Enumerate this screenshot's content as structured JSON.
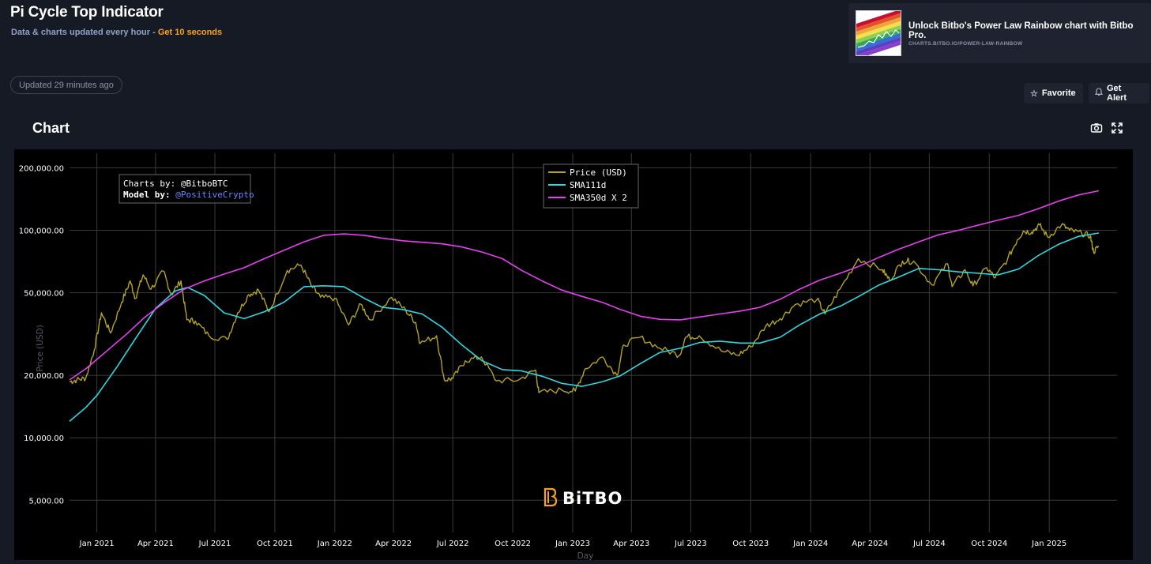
{
  "header": {
    "title": "Pi Cycle Top Indicator",
    "subtitle": "Data & charts updated every hour - ",
    "subtitle_accent": "Get 10 seconds",
    "updated": "Updated 29 minutes ago"
  },
  "promo": {
    "title": "Unlock Bitbo's Power Law Rainbow chart with Bitbo Pro.",
    "url": "CHARTS.BITBO.IO/POWER-LAW-RAINBOW"
  },
  "actions": {
    "favorite": "Favorite",
    "favorite_icon": "star-icon",
    "alert": "Get Alert",
    "alert_icon": "bell-icon"
  },
  "section": {
    "title": "Chart"
  },
  "toolbar": {
    "camera_icon": "camera-icon",
    "expand_icon": "expand-icon"
  },
  "watermark": "BiTBO",
  "annotation": {
    "line1": "Charts by: @BitboBTC",
    "line2_label": "Model by: ",
    "line2_link": "@PositiveCrypto"
  },
  "chart_data": {
    "type": "line",
    "xlabel": "Day",
    "ylabel": "Price (USD)",
    "y_scale": "log",
    "ylim": [
      3500,
      235000
    ],
    "xlim": [
      "2020-11-20",
      "2025-04-15"
    ],
    "grid": true,
    "legend_position": "top-center",
    "y_ticks": [
      5000,
      10000,
      20000,
      50000,
      100000,
      200000
    ],
    "y_tick_labels": [
      "5,000.00",
      "10,000.00",
      "20,000.00",
      "50,000.00",
      "100,000.00",
      "200,000.00"
    ],
    "x_ticks": [
      "2021-01-01",
      "2021-04-01",
      "2021-07-01",
      "2021-10-01",
      "2022-01-01",
      "2022-04-01",
      "2022-07-01",
      "2022-10-01",
      "2023-01-01",
      "2023-04-01",
      "2023-07-01",
      "2023-10-01",
      "2024-01-01",
      "2024-04-01",
      "2024-07-01",
      "2024-10-01",
      "2025-01-01"
    ],
    "x_tick_labels": [
      "Jan 2021",
      "Apr 2021",
      "Jul 2021",
      "Oct 2021",
      "Jan 2022",
      "Apr 2022",
      "Jul 2022",
      "Oct 2022",
      "Jan 2023",
      "Apr 2023",
      "Jul 2023",
      "Oct 2023",
      "Jan 2024",
      "Apr 2024",
      "Jul 2024",
      "Oct 2024",
      "Jan 2025"
    ],
    "series": [
      {
        "name": "Price (USD)",
        "color": "#b5a420",
        "points": [
          [
            "2020-11-20",
            18600
          ],
          [
            "2020-12-01",
            19000
          ],
          [
            "2020-12-15",
            19400
          ],
          [
            "2020-12-28",
            26500
          ],
          [
            "2021-01-08",
            40000
          ],
          [
            "2021-01-22",
            32000
          ],
          [
            "2021-02-08",
            45000
          ],
          [
            "2021-02-21",
            57000
          ],
          [
            "2021-03-01",
            47000
          ],
          [
            "2021-03-13",
            61000
          ],
          [
            "2021-03-25",
            52000
          ],
          [
            "2021-04-13",
            63500
          ],
          [
            "2021-04-25",
            49000
          ],
          [
            "2021-05-10",
            57000
          ],
          [
            "2021-05-19",
            37000
          ],
          [
            "2021-06-01",
            36500
          ],
          [
            "2021-06-22",
            31000
          ],
          [
            "2021-07-20",
            29800
          ],
          [
            "2021-08-05",
            40000
          ],
          [
            "2021-08-22",
            49000
          ],
          [
            "2021-09-06",
            51500
          ],
          [
            "2021-09-22",
            40500
          ],
          [
            "2021-10-20",
            64000
          ],
          [
            "2021-11-10",
            68000
          ],
          [
            "2021-11-26",
            54000
          ],
          [
            "2021-12-10",
            47500
          ],
          [
            "2022-01-01",
            47000
          ],
          [
            "2022-01-22",
            35000
          ],
          [
            "2022-02-10",
            44000
          ],
          [
            "2022-02-24",
            37000
          ],
          [
            "2022-03-29",
            47500
          ],
          [
            "2022-04-20",
            41000
          ],
          [
            "2022-05-05",
            36000
          ],
          [
            "2022-05-12",
            28500
          ],
          [
            "2022-06-06",
            31000
          ],
          [
            "2022-06-18",
            19000
          ],
          [
            "2022-07-01",
            19300
          ],
          [
            "2022-07-20",
            23500
          ],
          [
            "2022-08-14",
            24500
          ],
          [
            "2022-09-06",
            18800
          ],
          [
            "2022-10-10",
            19000
          ],
          [
            "2022-11-05",
            21200
          ],
          [
            "2022-11-10",
            16500
          ],
          [
            "2022-12-15",
            17000
          ],
          [
            "2023-01-05",
            16800
          ],
          [
            "2023-01-20",
            21500
          ],
          [
            "2023-02-16",
            24500
          ],
          [
            "2023-03-10",
            20000
          ],
          [
            "2023-03-20",
            28000
          ],
          [
            "2023-04-14",
            30500
          ],
          [
            "2023-05-15",
            27000
          ],
          [
            "2023-06-14",
            25000
          ],
          [
            "2023-06-23",
            30500
          ],
          [
            "2023-07-14",
            31000
          ],
          [
            "2023-08-17",
            26200
          ],
          [
            "2023-09-11",
            25000
          ],
          [
            "2023-10-01",
            27500
          ],
          [
            "2023-10-24",
            34500
          ],
          [
            "2023-11-15",
            37500
          ],
          [
            "2023-12-08",
            43800
          ],
          [
            "2024-01-11",
            46500
          ],
          [
            "2024-01-23",
            39500
          ],
          [
            "2024-02-15",
            52000
          ],
          [
            "2024-03-14",
            73000
          ],
          [
            "2024-04-20",
            64500
          ],
          [
            "2024-05-01",
            57500
          ],
          [
            "2024-05-21",
            71000
          ],
          [
            "2024-06-07",
            71000
          ],
          [
            "2024-07-05",
            54500
          ],
          [
            "2024-07-29",
            69000
          ],
          [
            "2024-08-05",
            53500
          ],
          [
            "2024-08-25",
            64500
          ],
          [
            "2024-09-06",
            53900
          ],
          [
            "2024-09-27",
            66000
          ],
          [
            "2024-10-10",
            59000
          ],
          [
            "2024-10-29",
            72500
          ],
          [
            "2024-11-13",
            90000
          ],
          [
            "2024-11-22",
            99000
          ],
          [
            "2024-12-05",
            98000
          ],
          [
            "2024-12-17",
            106000
          ],
          [
            "2024-12-30",
            92500
          ],
          [
            "2025-01-20",
            106500
          ],
          [
            "2025-02-01",
            100000
          ],
          [
            "2025-02-20",
            96500
          ],
          [
            "2025-03-05",
            94000
          ],
          [
            "2025-03-10",
            78500
          ],
          [
            "2025-03-18",
            84000
          ]
        ]
      },
      {
        "name": "SMA111d",
        "color": "#2ed9e2",
        "points": [
          [
            "2020-11-20",
            12000
          ],
          [
            "2020-12-15",
            14000
          ],
          [
            "2021-01-01",
            16000
          ],
          [
            "2021-02-01",
            22000
          ],
          [
            "2021-03-01",
            30000
          ],
          [
            "2021-04-01",
            42000
          ],
          [
            "2021-05-01",
            51000
          ],
          [
            "2021-05-20",
            53000
          ],
          [
            "2021-06-15",
            48500
          ],
          [
            "2021-07-15",
            40000
          ],
          [
            "2021-08-15",
            37500
          ],
          [
            "2021-09-15",
            40500
          ],
          [
            "2021-10-15",
            45000
          ],
          [
            "2021-11-15",
            53500
          ],
          [
            "2021-12-15",
            54000
          ],
          [
            "2022-01-15",
            53500
          ],
          [
            "2022-02-15",
            47000
          ],
          [
            "2022-03-15",
            42500
          ],
          [
            "2022-04-15",
            41500
          ],
          [
            "2022-05-15",
            39500
          ],
          [
            "2022-06-15",
            34000
          ],
          [
            "2022-07-15",
            28000
          ],
          [
            "2022-08-15",
            23500
          ],
          [
            "2022-09-15",
            21300
          ],
          [
            "2022-10-15",
            21000
          ],
          [
            "2022-11-15",
            19800
          ],
          [
            "2022-12-15",
            18300
          ],
          [
            "2023-01-15",
            17700
          ],
          [
            "2023-02-15",
            18600
          ],
          [
            "2023-03-15",
            19900
          ],
          [
            "2023-04-15",
            22800
          ],
          [
            "2023-05-15",
            25800
          ],
          [
            "2023-06-15",
            27000
          ],
          [
            "2023-07-15",
            28800
          ],
          [
            "2023-08-15",
            29200
          ],
          [
            "2023-09-15",
            28600
          ],
          [
            "2023-10-15",
            28600
          ],
          [
            "2023-11-15",
            30500
          ],
          [
            "2023-12-15",
            35000
          ],
          [
            "2024-01-15",
            39500
          ],
          [
            "2024-02-15",
            43000
          ],
          [
            "2024-03-15",
            48000
          ],
          [
            "2024-04-15",
            54500
          ],
          [
            "2024-05-15",
            59500
          ],
          [
            "2024-06-15",
            65500
          ],
          [
            "2024-07-15",
            64500
          ],
          [
            "2024-08-15",
            63000
          ],
          [
            "2024-09-15",
            62000
          ],
          [
            "2024-10-15",
            61000
          ],
          [
            "2024-11-15",
            65000
          ],
          [
            "2024-12-15",
            75500
          ],
          [
            "2025-01-15",
            85500
          ],
          [
            "2025-02-15",
            93500
          ],
          [
            "2025-03-18",
            97000
          ]
        ]
      },
      {
        "name": "SMA350d X 2",
        "color": "#e83ff0",
        "points": [
          [
            "2020-11-20",
            19000
          ],
          [
            "2020-12-15",
            21500
          ],
          [
            "2021-01-15",
            26000
          ],
          [
            "2021-02-15",
            31500
          ],
          [
            "2021-03-15",
            38000
          ],
          [
            "2021-04-15",
            45000
          ],
          [
            "2021-05-15",
            52000
          ],
          [
            "2021-06-15",
            57000
          ],
          [
            "2021-07-15",
            61500
          ],
          [
            "2021-08-15",
            66000
          ],
          [
            "2021-09-15",
            73000
          ],
          [
            "2021-10-15",
            80000
          ],
          [
            "2021-11-15",
            88000
          ],
          [
            "2021-12-15",
            94500
          ],
          [
            "2022-01-15",
            96000
          ],
          [
            "2022-02-15",
            94500
          ],
          [
            "2022-03-15",
            91500
          ],
          [
            "2022-04-15",
            89000
          ],
          [
            "2022-05-15",
            87500
          ],
          [
            "2022-06-15",
            86000
          ],
          [
            "2022-07-15",
            83000
          ],
          [
            "2022-08-15",
            78500
          ],
          [
            "2022-09-15",
            73000
          ],
          [
            "2022-10-15",
            64000
          ],
          [
            "2022-11-15",
            57000
          ],
          [
            "2022-12-15",
            51500
          ],
          [
            "2023-01-15",
            48000
          ],
          [
            "2023-02-15",
            45000
          ],
          [
            "2023-03-15",
            41500
          ],
          [
            "2023-04-15",
            38500
          ],
          [
            "2023-05-15",
            37200
          ],
          [
            "2023-06-15",
            37000
          ],
          [
            "2023-07-15",
            38200
          ],
          [
            "2023-08-15",
            39500
          ],
          [
            "2023-09-15",
            40800
          ],
          [
            "2023-10-15",
            42500
          ],
          [
            "2023-11-15",
            46500
          ],
          [
            "2023-12-15",
            52000
          ],
          [
            "2024-01-15",
            57500
          ],
          [
            "2024-02-15",
            62000
          ],
          [
            "2024-03-15",
            67000
          ],
          [
            "2024-04-15",
            74000
          ],
          [
            "2024-05-15",
            81000
          ],
          [
            "2024-06-15",
            88000
          ],
          [
            "2024-07-15",
            95000
          ],
          [
            "2024-08-15",
            100000
          ],
          [
            "2024-09-15",
            106000
          ],
          [
            "2024-10-15",
            112000
          ],
          [
            "2024-11-15",
            118000
          ],
          [
            "2024-12-15",
            127000
          ],
          [
            "2025-01-15",
            138000
          ],
          [
            "2025-02-15",
            148000
          ],
          [
            "2025-03-18",
            155000
          ]
        ]
      }
    ]
  }
}
